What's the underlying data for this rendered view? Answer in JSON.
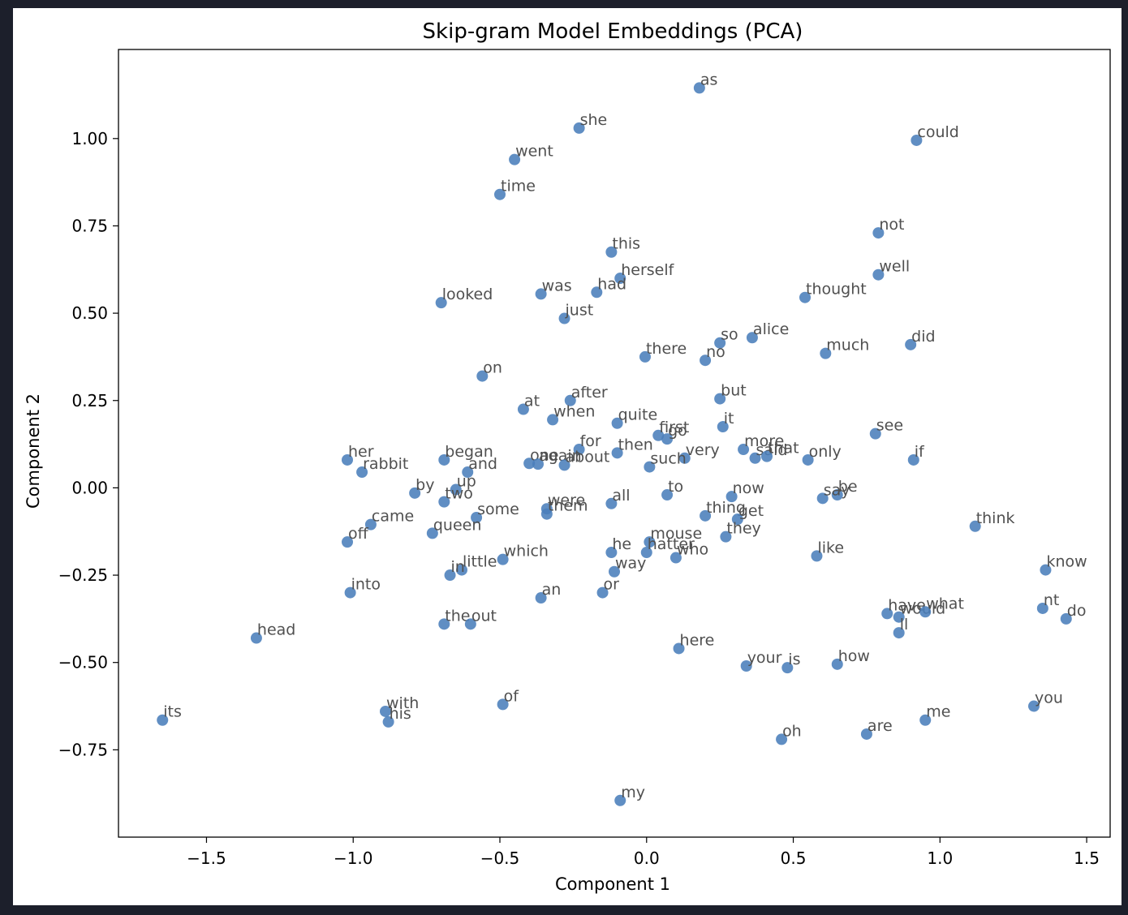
{
  "chart_data": {
    "type": "scatter",
    "title": "Skip-gram Model Embeddings (PCA)",
    "xlabel": "Component 1",
    "ylabel": "Component 2",
    "xlim": [
      -1.8,
      1.58
    ],
    "ylim": [
      -1.0,
      1.255
    ],
    "xticks": [
      -1.5,
      -1.0,
      -0.5,
      0.0,
      0.5,
      1.0,
      1.5
    ],
    "xtick_labels": [
      "−1.5",
      "−1.0",
      "−0.5",
      "0.0",
      "0.5",
      "1.0",
      "1.5"
    ],
    "yticks": [
      -0.75,
      -0.5,
      -0.25,
      0.0,
      0.25,
      0.5,
      0.75,
      1.0
    ],
    "ytick_labels": [
      "−0.75",
      "−0.50",
      "−0.25",
      "0.00",
      "0.25",
      "0.50",
      "0.75",
      "1.00"
    ],
    "grid": false,
    "marker_color": "#4a7ebb",
    "label_color": "#505050",
    "points": [
      {
        "label": "as",
        "x": 0.18,
        "y": 1.145
      },
      {
        "label": "she",
        "x": -0.23,
        "y": 1.03
      },
      {
        "label": "could",
        "x": 0.92,
        "y": 0.995
      },
      {
        "label": "went",
        "x": -0.45,
        "y": 0.94
      },
      {
        "label": "time",
        "x": -0.5,
        "y": 0.84
      },
      {
        "label": "not",
        "x": 0.79,
        "y": 0.73
      },
      {
        "label": "this",
        "x": -0.12,
        "y": 0.675
      },
      {
        "label": "well",
        "x": 0.79,
        "y": 0.61
      },
      {
        "label": "herself",
        "x": -0.09,
        "y": 0.6
      },
      {
        "label": "had",
        "x": -0.17,
        "y": 0.56
      },
      {
        "label": "was",
        "x": -0.36,
        "y": 0.555
      },
      {
        "label": "thought",
        "x": 0.54,
        "y": 0.545
      },
      {
        "label": "looked",
        "x": -0.7,
        "y": 0.53
      },
      {
        "label": "just",
        "x": -0.28,
        "y": 0.485
      },
      {
        "label": "alice",
        "x": 0.36,
        "y": 0.43
      },
      {
        "label": "so",
        "x": 0.25,
        "y": 0.415
      },
      {
        "label": "did",
        "x": 0.9,
        "y": 0.41
      },
      {
        "label": "much",
        "x": 0.61,
        "y": 0.385
      },
      {
        "label": "there",
        "x": -0.005,
        "y": 0.375
      },
      {
        "label": "no",
        "x": 0.2,
        "y": 0.365
      },
      {
        "label": "on",
        "x": -0.56,
        "y": 0.32
      },
      {
        "label": "but",
        "x": 0.25,
        "y": 0.255
      },
      {
        "label": "after",
        "x": -0.26,
        "y": 0.25
      },
      {
        "label": "at",
        "x": -0.42,
        "y": 0.225
      },
      {
        "label": "when",
        "x": -0.32,
        "y": 0.195
      },
      {
        "label": "quite",
        "x": -0.1,
        "y": 0.185
      },
      {
        "label": "it",
        "x": 0.26,
        "y": 0.175
      },
      {
        "label": "see",
        "x": 0.78,
        "y": 0.155
      },
      {
        "label": "first",
        "x": 0.04,
        "y": 0.15
      },
      {
        "label": "go",
        "x": 0.07,
        "y": 0.14
      },
      {
        "label": "for",
        "x": -0.23,
        "y": 0.11
      },
      {
        "label": "more",
        "x": 0.33,
        "y": 0.11
      },
      {
        "label": "then",
        "x": -0.1,
        "y": 0.1
      },
      {
        "label": "said",
        "x": 0.37,
        "y": 0.085
      },
      {
        "label": "that",
        "x": 0.41,
        "y": 0.09
      },
      {
        "label": "very",
        "x": 0.13,
        "y": 0.085
      },
      {
        "label": "only",
        "x": 0.55,
        "y": 0.08
      },
      {
        "label": "if",
        "x": 0.91,
        "y": 0.08
      },
      {
        "label": "her",
        "x": -1.02,
        "y": 0.08
      },
      {
        "label": "began",
        "x": -0.69,
        "y": 0.08
      },
      {
        "label": "one",
        "x": -0.4,
        "y": 0.07
      },
      {
        "label": "again",
        "x": -0.37,
        "y": 0.068
      },
      {
        "label": "about",
        "x": -0.28,
        "y": 0.065
      },
      {
        "label": "such",
        "x": 0.01,
        "y": 0.06
      },
      {
        "label": "rabbit",
        "x": -0.97,
        "y": 0.045
      },
      {
        "label": "and",
        "x": -0.61,
        "y": 0.045
      },
      {
        "label": "by",
        "x": -0.79,
        "y": -0.015
      },
      {
        "label": "up",
        "x": -0.65,
        "y": -0.005
      },
      {
        "label": "two",
        "x": -0.69,
        "y": -0.04
      },
      {
        "label": "to",
        "x": 0.07,
        "y": -0.02
      },
      {
        "label": "now",
        "x": 0.29,
        "y": -0.025
      },
      {
        "label": "be",
        "x": 0.65,
        "y": -0.02
      },
      {
        "label": "say",
        "x": 0.6,
        "y": -0.03
      },
      {
        "label": "all",
        "x": -0.12,
        "y": -0.045
      },
      {
        "label": "were",
        "x": -0.34,
        "y": -0.06
      },
      {
        "label": "them",
        "x": -0.34,
        "y": -0.075
      },
      {
        "label": "some",
        "x": -0.58,
        "y": -0.085
      },
      {
        "label": "thing",
        "x": 0.2,
        "y": -0.08
      },
      {
        "label": "get",
        "x": 0.31,
        "y": -0.09
      },
      {
        "label": "came",
        "x": -0.94,
        "y": -0.105
      },
      {
        "label": "think",
        "x": 1.12,
        "y": -0.11
      },
      {
        "label": "queen",
        "x": -0.73,
        "y": -0.13
      },
      {
        "label": "they",
        "x": 0.27,
        "y": -0.14
      },
      {
        "label": "off",
        "x": -1.02,
        "y": -0.155
      },
      {
        "label": "mouse",
        "x": 0.01,
        "y": -0.155
      },
      {
        "label": "he",
        "x": -0.12,
        "y": -0.185
      },
      {
        "label": "hatter",
        "x": 0.0,
        "y": -0.185
      },
      {
        "label": "like",
        "x": 0.58,
        "y": -0.195
      },
      {
        "label": "who",
        "x": 0.1,
        "y": -0.2
      },
      {
        "label": "which",
        "x": -0.49,
        "y": -0.205
      },
      {
        "label": "little",
        "x": -0.63,
        "y": -0.235
      },
      {
        "label": "know",
        "x": 1.36,
        "y": -0.235
      },
      {
        "label": "way",
        "x": -0.11,
        "y": -0.24
      },
      {
        "label": "in",
        "x": -0.67,
        "y": -0.25
      },
      {
        "label": "into",
        "x": -1.01,
        "y": -0.3
      },
      {
        "label": "or",
        "x": -0.15,
        "y": -0.3
      },
      {
        "label": "an",
        "x": -0.36,
        "y": -0.315
      },
      {
        "label": "nt",
        "x": 1.35,
        "y": -0.345
      },
      {
        "label": "have",
        "x": 0.82,
        "y": -0.36
      },
      {
        "label": "would",
        "x": 0.86,
        "y": -0.37
      },
      {
        "label": "what",
        "x": 0.95,
        "y": -0.355
      },
      {
        "label": "do",
        "x": 1.43,
        "y": -0.375
      },
      {
        "label": "the",
        "x": -0.69,
        "y": -0.39
      },
      {
        "label": "out",
        "x": -0.6,
        "y": -0.39
      },
      {
        "label": "ll",
        "x": 0.86,
        "y": -0.415
      },
      {
        "label": "head",
        "x": -1.33,
        "y": -0.43
      },
      {
        "label": "here",
        "x": 0.11,
        "y": -0.46
      },
      {
        "label": "how",
        "x": 0.65,
        "y": -0.505
      },
      {
        "label": "your",
        "x": 0.34,
        "y": -0.51
      },
      {
        "label": "is",
        "x": 0.48,
        "y": -0.515
      },
      {
        "label": "of",
        "x": -0.49,
        "y": -0.62
      },
      {
        "label": "you",
        "x": 1.32,
        "y": -0.625
      },
      {
        "label": "with",
        "x": -0.89,
        "y": -0.64
      },
      {
        "label": "his",
        "x": -0.88,
        "y": -0.67
      },
      {
        "label": "its",
        "x": -1.65,
        "y": -0.665
      },
      {
        "label": "me",
        "x": 0.95,
        "y": -0.665
      },
      {
        "label": "are",
        "x": 0.75,
        "y": -0.705
      },
      {
        "label": "oh",
        "x": 0.46,
        "y": -0.72
      },
      {
        "label": "my",
        "x": -0.09,
        "y": -0.895
      }
    ]
  }
}
